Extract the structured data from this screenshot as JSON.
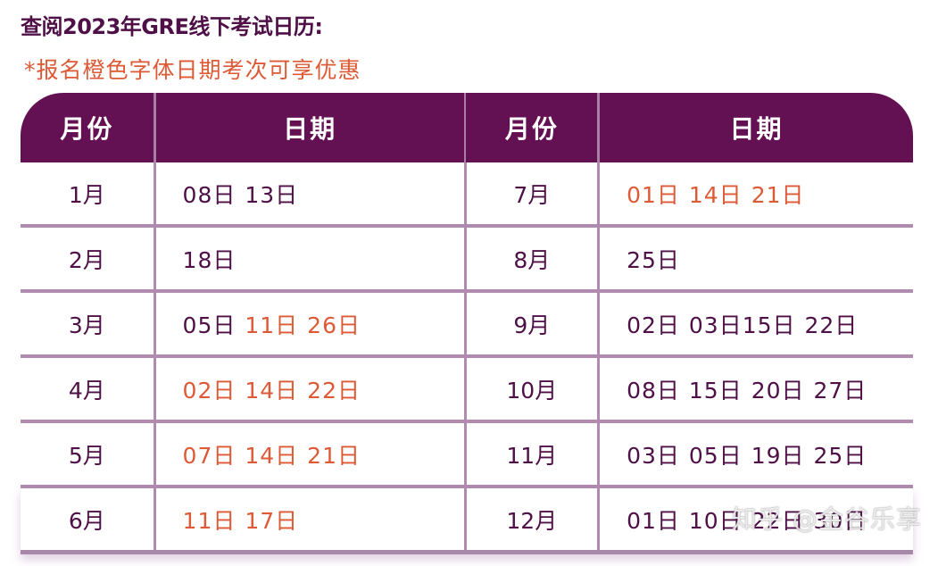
{
  "page": {
    "title": "查阅2023年GRE线下考试日历:",
    "note": "*报名橙色字体日期考次可享优惠"
  },
  "colors": {
    "header_bg": "#641153",
    "text_primary": "#4e1047",
    "highlight_orange": "#dd5a37",
    "grid_line": "#b18ab0"
  },
  "table": {
    "headers": {
      "month_left": "月份",
      "date_left": "日期",
      "month_right": "月份",
      "date_right": "日期"
    },
    "rows": [
      {
        "left": {
          "month": "1月",
          "dates": [
            {
              "t": "08日",
              "hl": false
            },
            {
              "t": "13日",
              "hl": false
            }
          ]
        },
        "right": {
          "month": "7月",
          "dates": [
            {
              "t": "01日",
              "hl": true
            },
            {
              "t": "14日",
              "hl": true
            },
            {
              "t": "21日",
              "hl": true
            }
          ]
        }
      },
      {
        "left": {
          "month": "2月",
          "dates": [
            {
              "t": "18日",
              "hl": false
            }
          ]
        },
        "right": {
          "month": "8月",
          "dates": [
            {
              "t": "25日",
              "hl": false
            }
          ]
        }
      },
      {
        "left": {
          "month": "3月",
          "dates": [
            {
              "t": "05日",
              "hl": false
            },
            {
              "t": "11日",
              "hl": true
            },
            {
              "t": "26日",
              "hl": true
            }
          ]
        },
        "right": {
          "month": "9月",
          "dates": [
            {
              "t": "02日",
              "hl": false
            },
            {
              "t": "03日",
              "hl": false
            },
            {
              "t": "15日",
              "hl": false
            },
            {
              "t": "22日",
              "hl": false
            }
          ]
        }
      },
      {
        "left": {
          "month": "4月",
          "dates": [
            {
              "t": "02日",
              "hl": true
            },
            {
              "t": "14日",
              "hl": true
            },
            {
              "t": "22日",
              "hl": true
            }
          ]
        },
        "right": {
          "month": "10月",
          "dates": [
            {
              "t": "08日",
              "hl": false
            },
            {
              "t": "15日",
              "hl": false
            },
            {
              "t": "20日",
              "hl": false
            },
            {
              "t": "27日",
              "hl": false
            }
          ]
        }
      },
      {
        "left": {
          "month": "5月",
          "dates": [
            {
              "t": "07日",
              "hl": true
            },
            {
              "t": "14日",
              "hl": true
            },
            {
              "t": "21日",
              "hl": true
            }
          ]
        },
        "right": {
          "month": "11月",
          "dates": [
            {
              "t": "03日",
              "hl": false
            },
            {
              "t": "05日",
              "hl": false
            },
            {
              "t": "19日",
              "hl": false
            },
            {
              "t": "25日",
              "hl": false
            }
          ]
        }
      },
      {
        "left": {
          "month": "6月",
          "dates": [
            {
              "t": "11日",
              "hl": true
            },
            {
              "t": "17日",
              "hl": true
            }
          ]
        },
        "right": {
          "month": "12月",
          "dates": [
            {
              "t": "01日",
              "hl": false
            },
            {
              "t": "10日",
              "hl": false
            },
            {
              "t": "22日",
              "hl": false
            },
            {
              "t": "30日",
              "hl": false
            }
          ]
        }
      }
    ]
  },
  "watermark": "知乎 @金谷乐享"
}
